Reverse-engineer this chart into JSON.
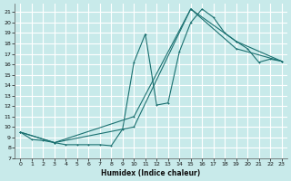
{
  "title": "",
  "xlabel": "Humidex (Indice chaleur)",
  "ylabel": "",
  "bg_color": "#c8eaea",
  "line_color": "#1a7070",
  "grid_color": "#ffffff",
  "xlim": [
    -0.5,
    23.5
  ],
  "ylim": [
    7,
    21.8
  ],
  "yticks": [
    7,
    8,
    9,
    10,
    11,
    12,
    13,
    14,
    15,
    16,
    17,
    18,
    19,
    20,
    21
  ],
  "xticks": [
    0,
    1,
    2,
    3,
    4,
    5,
    6,
    7,
    8,
    9,
    10,
    11,
    12,
    13,
    14,
    15,
    16,
    17,
    18,
    19,
    20,
    21,
    22,
    23
  ],
  "line1_x": [
    0,
    1,
    2,
    3,
    4,
    5,
    6,
    7,
    8,
    9,
    10,
    11,
    12,
    13,
    14,
    15,
    16,
    17,
    18,
    19,
    20,
    21,
    22,
    23
  ],
  "line1_y": [
    9.5,
    8.8,
    8.7,
    8.5,
    8.3,
    8.3,
    8.3,
    8.3,
    8.2,
    9.8,
    16.2,
    18.9,
    12.1,
    12.3,
    17.2,
    20.0,
    21.3,
    20.5,
    19.0,
    18.2,
    17.5,
    16.2,
    16.5,
    16.3
  ],
  "line2_x": [
    0,
    3,
    10,
    15,
    19,
    23
  ],
  "line2_y": [
    9.5,
    8.5,
    11.0,
    21.3,
    17.5,
    16.3
  ],
  "line3_x": [
    0,
    3,
    10,
    15,
    19,
    23
  ],
  "line3_y": [
    9.5,
    8.5,
    10.0,
    21.3,
    18.2,
    16.3
  ]
}
